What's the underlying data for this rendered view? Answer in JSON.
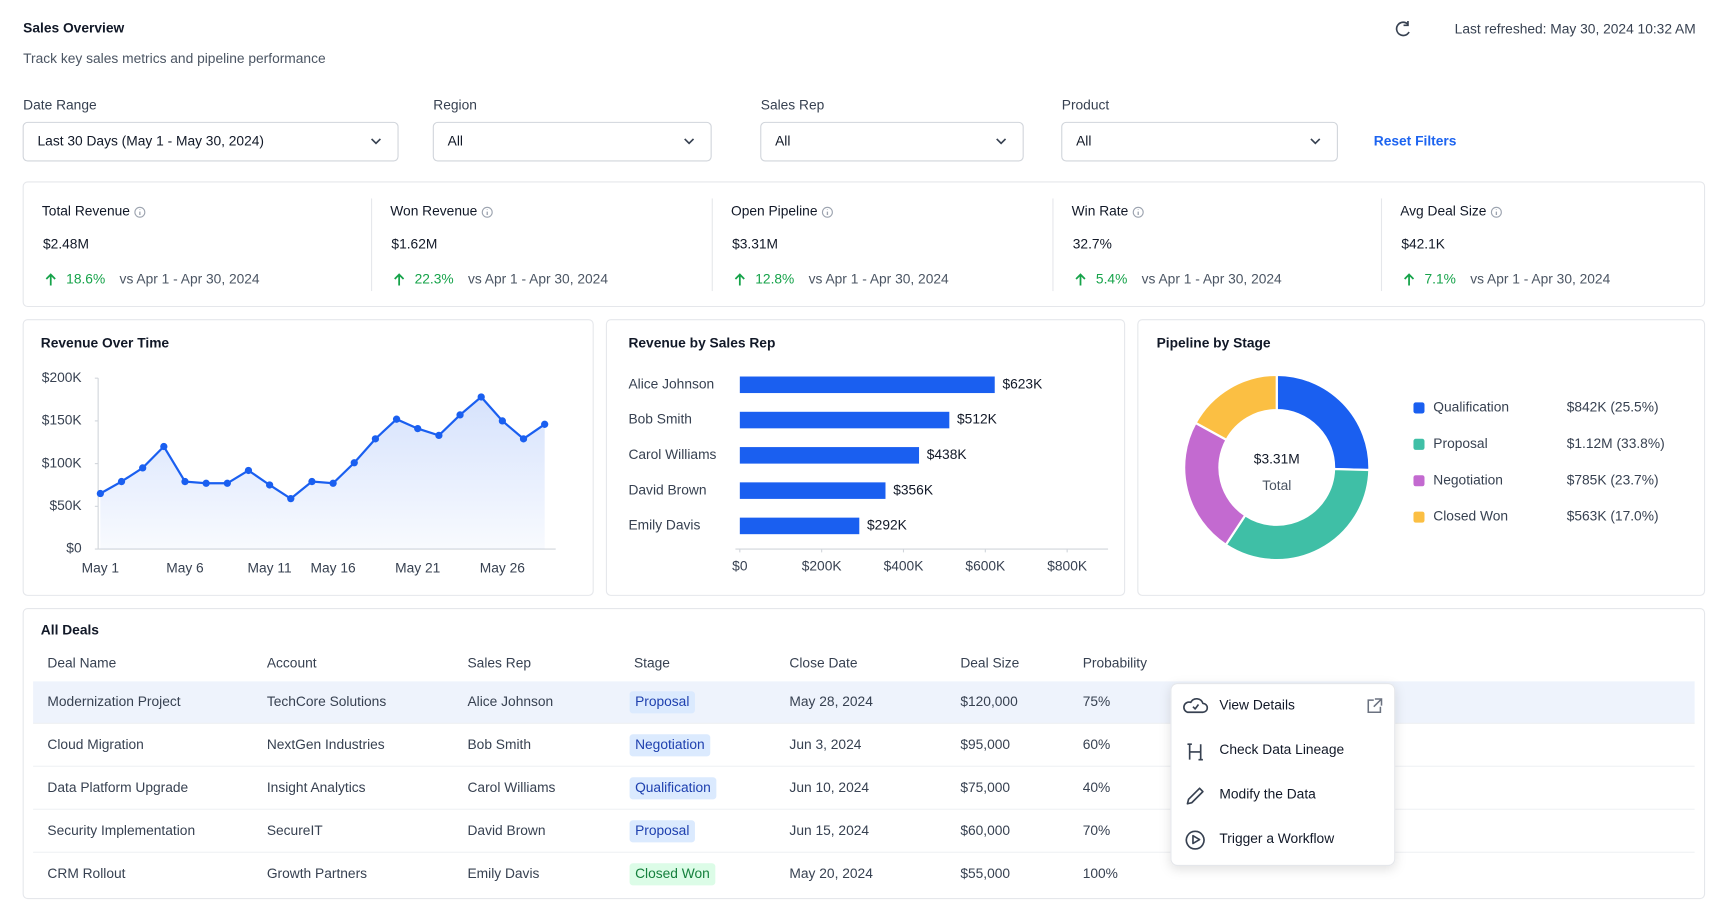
{
  "header": {
    "title": "Sales Overview",
    "subtitle": "Track key sales metrics and pipeline performance",
    "refreshed": "Last refreshed: May 30, 2024 10:32 AM"
  },
  "filters": [
    {
      "label": "Date Range",
      "value": "Last 30 Days (May 1 - May 30, 2024)"
    },
    {
      "label": "Region",
      "value": "All"
    },
    {
      "label": "Sales Rep",
      "value": "All"
    },
    {
      "label": "Product",
      "value": "All"
    }
  ],
  "reset": "Reset Filters",
  "kpis": [
    {
      "label": "Total Revenue",
      "value": "$2.48M",
      "change": "18.6%",
      "compare": "vs Apr 1 - Apr 30, 2024"
    },
    {
      "label": "Won Revenue",
      "value": "$1.62M",
      "change": "22.3%",
      "compare": "vs Apr 1 - Apr 30, 2024"
    },
    {
      "label": "Open Pipeline",
      "value": "$3.31M",
      "change": "12.8%",
      "compare": "vs Apr 1 - Apr 30, 2024"
    },
    {
      "label": "Win Rate",
      "value": "32.7%",
      "change": "5.4%",
      "compare": "vs Apr 1 - Apr 30, 2024"
    },
    {
      "label": "Avg Deal Size",
      "value": "$42.1K",
      "change": "7.1%",
      "compare": "vs Apr 1 - Apr 30, 2024"
    }
  ],
  "chart_data": [
    {
      "type": "line",
      "title": "Revenue Over Time",
      "categories": [
        "May 1",
        null,
        null,
        null,
        "May 6",
        null,
        null,
        null,
        "May 11",
        null,
        null,
        "May 16",
        null,
        null,
        null,
        "May 21",
        null,
        null,
        null,
        "May 26",
        null,
        null
      ],
      "values": [
        65000,
        79000,
        95000,
        120000,
        79000,
        77000,
        77000,
        92000,
        75000,
        59000,
        79000,
        77000,
        101000,
        129000,
        152000,
        141000,
        133000,
        157000,
        178000,
        150000,
        129000,
        146000
      ],
      "color": "#1a5ff0",
      "ylim": [
        0,
        200000
      ],
      "yticks": [
        {
          "value": 0,
          "label": "$0"
        },
        {
          "value": 50000,
          "label": "$50K"
        },
        {
          "value": 100000,
          "label": "$100K"
        },
        {
          "value": 150000,
          "label": "$150K"
        },
        {
          "value": 200000,
          "label": "$200K"
        }
      ]
    },
    {
      "type": "hbar",
      "title": "Revenue by Sales Rep",
      "categories": [
        "Alice Johnson",
        "Bob Smith",
        "Carol Williams",
        "David Brown",
        "Emily Davis"
      ],
      "values": [
        623000,
        512000,
        438000,
        356000,
        292000
      ],
      "value_labels": [
        "$623K",
        "$512K",
        "$438K",
        "$356K",
        "$292K"
      ],
      "color": "#1a5ff0",
      "xlim": [
        0,
        900000
      ],
      "xticks": [
        {
          "value": 0,
          "label": "$0"
        },
        {
          "value": 200000,
          "label": "$200K"
        },
        {
          "value": 400000,
          "label": "$400K"
        },
        {
          "value": 600000,
          "label": "$600K"
        },
        {
          "value": 800000,
          "label": "$800K"
        }
      ]
    },
    {
      "type": "donut",
      "title": "Pipeline by Stage",
      "center_value": "$3.31M",
      "center_label": "Total",
      "categories": [
        "Qualification",
        "Proposal",
        "Negotiation",
        "Closed Won"
      ],
      "values": [
        842000,
        1120000,
        785000,
        563000
      ],
      "value_labels": [
        "$842K (25.5%)",
        "$1.12M (33.8%)",
        "$785K (23.7%)",
        "$563K (17.0%)"
      ],
      "colors": [
        "#1a5ff0",
        "#3fbfa6",
        "#c36ad0",
        "#fbbf43"
      ]
    }
  ],
  "table": {
    "title": "All Deals",
    "columns": [
      "Deal Name",
      "Account",
      "Sales Rep",
      "Stage",
      "Close Date",
      "Deal Size",
      "Probability"
    ],
    "rows": [
      [
        "Modernization Project",
        "TechCore Solutions",
        "Alice Johnson",
        "Proposal",
        "May 28, 2024",
        "$120,000",
        "75%"
      ],
      [
        "Cloud Migration",
        "NextGen Industries",
        "Bob Smith",
        "Negotiation",
        "Jun 3, 2024",
        "$95,000",
        "60%"
      ],
      [
        "Data Platform Upgrade",
        "Insight Analytics",
        "Carol Williams",
        "Qualification",
        "Jun 10, 2024",
        "$75,000",
        "40%"
      ],
      [
        "Security Implementation",
        "SecureIT",
        "David Brown",
        "Proposal",
        "Jun 15, 2024",
        "$60,000",
        "70%"
      ],
      [
        "CRM Rollout",
        "Growth Partners",
        "Emily Davis",
        "Closed Won",
        "May 20, 2024",
        "$55,000",
        "100%"
      ]
    ],
    "badge_colors": {
      "Proposal": [
        "#dbeafe",
        "#1e40af"
      ],
      "Negotiation": [
        "#dbeafe",
        "#1e40af"
      ],
      "Qualification": [
        "#dbeafe",
        "#1e40af"
      ],
      "Closed Won": [
        "#dcfce7",
        "#15803d"
      ]
    }
  },
  "menu": [
    "View Details",
    "Check Data Lineage",
    "Modify the Data",
    "Trigger a Workflow"
  ]
}
